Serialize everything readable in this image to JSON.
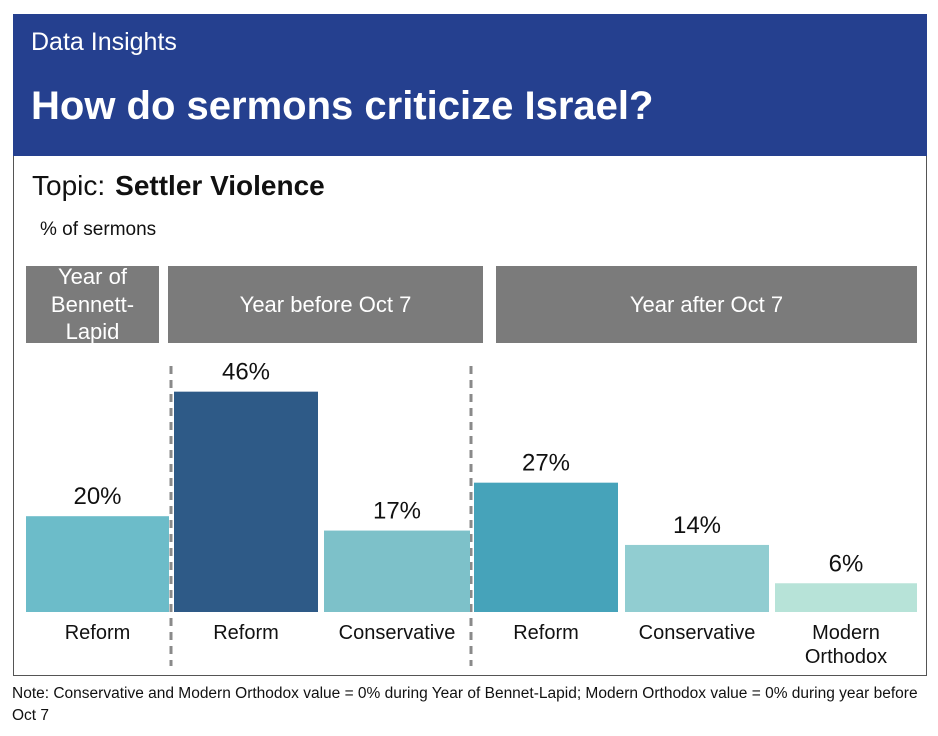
{
  "header": {
    "kicker": "Data Insights",
    "title": "How do sermons criticize Israel?"
  },
  "topic": {
    "label": "Topic:",
    "value": "Settler Violence"
  },
  "unit_label": "% of sermons",
  "groups": [
    {
      "label_lines": [
        "Year of",
        "Bennett-Lapid"
      ]
    },
    {
      "label_lines": [
        "Year before Oct 7"
      ]
    },
    {
      "label_lines": [
        "Year after Oct 7"
      ]
    }
  ],
  "chart_data": {
    "type": "bar",
    "ylim": [
      0,
      50
    ],
    "categories": [
      "Reform",
      "Reform",
      "Conservative",
      "Reform",
      "Conservative",
      "Modern Orthodox"
    ],
    "category_lines": [
      [
        "Reform"
      ],
      [
        "Reform"
      ],
      [
        "Conservative"
      ],
      [
        "Reform"
      ],
      [
        "Conservative"
      ],
      [
        "Modern",
        "Orthodox"
      ]
    ],
    "values": [
      20,
      46,
      17,
      27,
      14,
      6
    ],
    "value_labels": [
      "20%",
      "46%",
      "17%",
      "27%",
      "14%",
      "6%"
    ],
    "colors": [
      "#6cbcc9",
      "#2e5a87",
      "#7dc1c9",
      "#46a3ba",
      "#91cdd1",
      "#b7e3d8"
    ],
    "grid": false,
    "legend": "none"
  },
  "note": "Note: Conservative and Modern Orthodox value = 0% during Year of Bennet-Lapid; Modern Orthodox value = 0% during year before Oct 7"
}
